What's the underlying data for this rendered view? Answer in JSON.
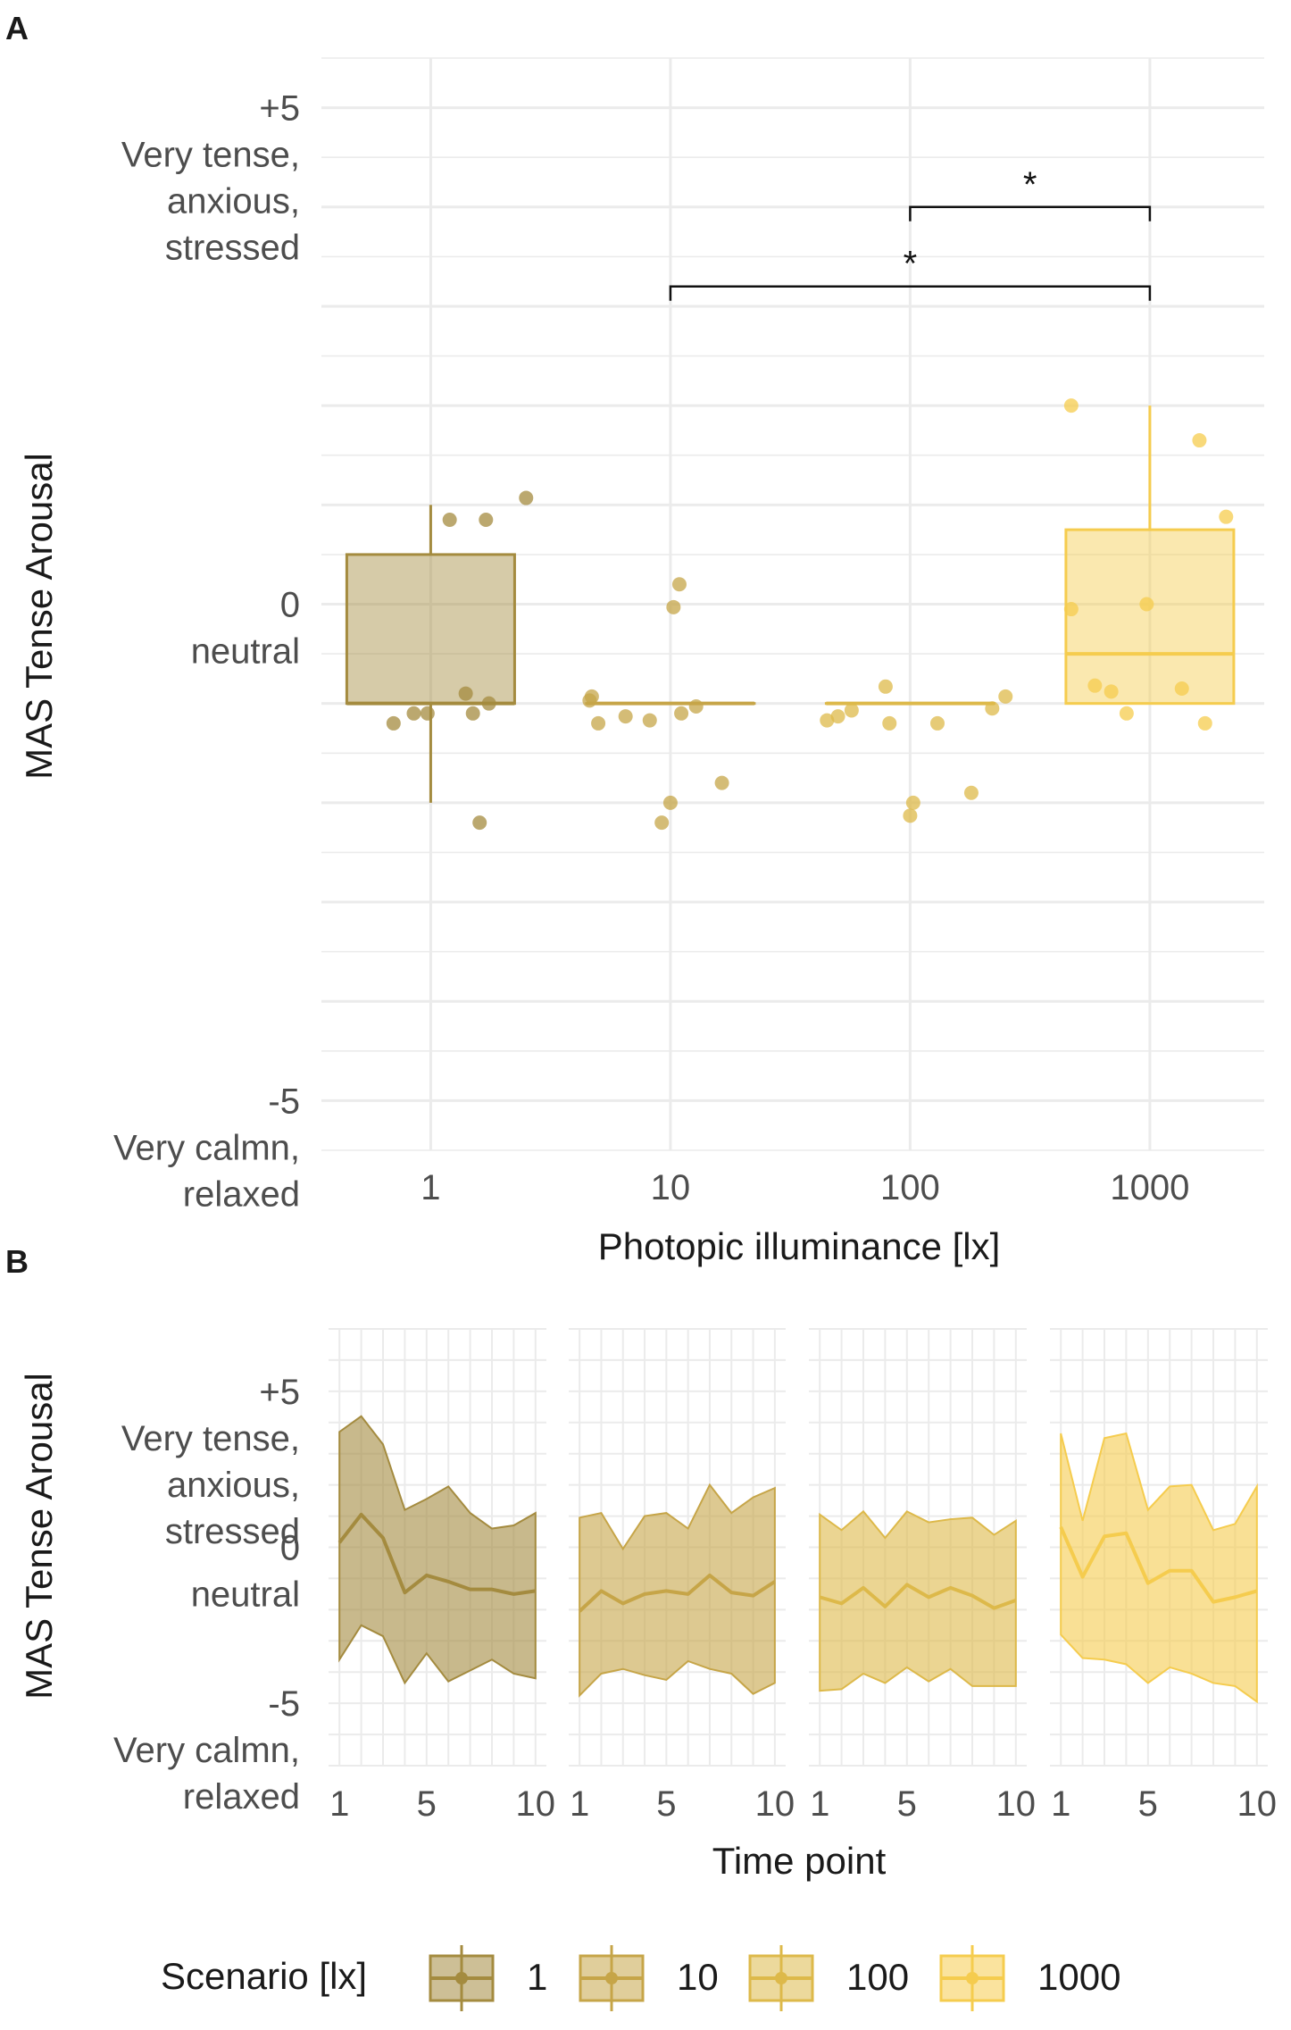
{
  "colors": {
    "1": "#A48B3F",
    "10": "#C6A548",
    "100": "#DDB94A",
    "1000": "#F5CC4E",
    "grid": "#EBEBEB",
    "axis_text": "#4D4D4D",
    "text": "#1A1A1A"
  },
  "chart_data": [
    {
      "panel_label": "A",
      "type": "box",
      "xlabel": "Photopic illuminance [lx]",
      "ylabel": "MAS Tense Arousal",
      "x_scale": "log10",
      "xlim": [
        0.35,
        3000
      ],
      "ylim": [
        -5.5,
        5.5
      ],
      "x_ticks": [
        1,
        10,
        100,
        1000
      ],
      "x_tick_labels": [
        "1",
        "10",
        "100",
        "1000"
      ],
      "y_tick_values": [
        5,
        0,
        -5
      ],
      "y_tick_labels": [
        [
          "+5",
          "Very tense,",
          "anxious,",
          "stressed"
        ],
        [
          "0",
          "neutral"
        ],
        [
          "-5",
          "Very calmn,",
          "relaxed"
        ]
      ],
      "groups": [
        {
          "name": "1",
          "x": 1,
          "min": -2,
          "q1": -1,
          "median": -1,
          "q3": 0.5,
          "max": 1,
          "points": [
            [
              0.7,
              -1.2
            ],
            [
              0.85,
              -1.1
            ],
            [
              0.97,
              -1.1
            ],
            [
              1.4,
              -0.9
            ],
            [
              1.5,
              -1.1
            ],
            [
              1.6,
              -2.2
            ],
            [
              1.75,
              -1
            ],
            [
              1.2,
              0.85
            ],
            [
              1.7,
              0.85
            ],
            [
              2.5,
              1.07
            ]
          ]
        },
        {
          "name": "10",
          "x": 10,
          "min": -1,
          "q1": -1,
          "median": -1,
          "q3": -1,
          "max": -1,
          "points": [
            [
              4.7,
              -0.93
            ],
            [
              4.6,
              -0.97
            ],
            [
              5,
              -1.2
            ],
            [
              6.5,
              -1.13
            ],
            [
              8.2,
              -1.17
            ],
            [
              10.3,
              -0.03
            ],
            [
              10.9,
              0.2
            ],
            [
              11.1,
              -1.1
            ],
            [
              12.8,
              -1.03
            ],
            [
              16.4,
              -1.8
            ],
            [
              9.2,
              -2.2
            ],
            [
              10,
              -2
            ]
          ]
        },
        {
          "name": "100",
          "x": 100,
          "min": -1,
          "q1": -1,
          "median": -1,
          "q3": -1,
          "max": -1,
          "points": [
            [
              45,
              -1.17
            ],
            [
              50,
              -1.13
            ],
            [
              57,
              -1.07
            ],
            [
              79,
              -0.83
            ],
            [
              82,
              -1.2
            ],
            [
              100,
              -2.13
            ],
            [
              103,
              -2
            ],
            [
              130,
              -1.2
            ],
            [
              180,
              -1.9
            ],
            [
              220,
              -1.05
            ],
            [
              250,
              -0.93
            ]
          ]
        },
        {
          "name": "1000",
          "x": 1000,
          "min": -1,
          "q1": -1,
          "median": -0.5,
          "q3": 0.75,
          "max": 2,
          "points": [
            [
              470,
              2
            ],
            [
              470,
              -0.05
            ],
            [
              590,
              -0.82
            ],
            [
              690,
              -0.88
            ],
            [
              970,
              0
            ],
            [
              1360,
              -0.85
            ],
            [
              1610,
              1.65
            ],
            [
              2080,
              0.88
            ],
            [
              800,
              -1.1
            ],
            [
              1700,
              -1.2
            ]
          ]
        }
      ],
      "annotations": [
        {
          "text": "*",
          "x_from": 100,
          "x_to": 1000,
          "y": 4
        },
        {
          "text": "*",
          "x_from": 10,
          "x_to": 1000,
          "y": 3.2
        }
      ]
    },
    {
      "panel_label": "B",
      "type": "area",
      "xlabel": "Time point",
      "ylabel": "MAS Tense Arousal",
      "x": [
        1,
        2,
        3,
        4,
        5,
        6,
        7,
        8,
        9,
        10
      ],
      "xlim": [
        0.5,
        10.5
      ],
      "ylim": [
        -7,
        7
      ],
      "x_ticks": [
        1,
        5,
        10
      ],
      "x_tick_labels": [
        "1",
        "5",
        "10"
      ],
      "y_tick_values": [
        5,
        0,
        -5
      ],
      "y_tick_labels": [
        [
          "+5",
          "Very tense,",
          "anxious,",
          "stressed"
        ],
        [
          "0",
          "neutral"
        ],
        [
          "-5",
          "Very calmn,",
          "relaxed"
        ]
      ],
      "series": [
        {
          "name": "1",
          "mean": [
            0.15,
            1.05,
            0.3,
            -1.45,
            -0.9,
            -1.1,
            -1.35,
            -1.35,
            -1.5,
            -1.4
          ],
          "lower": [
            -3.6,
            -2.5,
            -2.85,
            -4.35,
            -3.4,
            -4.3,
            -3.95,
            -3.6,
            -4.05,
            -4.2
          ],
          "upper": [
            3.7,
            4.2,
            3.3,
            1.2,
            1.55,
            1.95,
            1.1,
            0.6,
            0.7,
            1.1
          ]
        },
        {
          "name": "10",
          "mean": [
            -2.05,
            -1.4,
            -1.8,
            -1.5,
            -1.4,
            -1.5,
            -0.9,
            -1.45,
            -1.55,
            -1.1
          ],
          "lower": [
            -4.75,
            -4.05,
            -3.9,
            -4.1,
            -4.25,
            -3.65,
            -3.9,
            -4.05,
            -4.7,
            -4.35
          ],
          "upper": [
            0.95,
            1.1,
            -0.05,
            1.0,
            1.1,
            0.6,
            2.0,
            1.1,
            1.6,
            1.9
          ]
        },
        {
          "name": "100",
          "mean": [
            -1.6,
            -1.8,
            -1.3,
            -1.9,
            -1.2,
            -1.6,
            -1.3,
            -1.55,
            -1.95,
            -1.7
          ],
          "lower": [
            -4.6,
            -4.55,
            -4.05,
            -4.35,
            -3.85,
            -4.3,
            -3.9,
            -4.45,
            -4.45,
            -4.45
          ],
          "upper": [
            1.05,
            0.55,
            1.15,
            0.3,
            1.15,
            0.8,
            0.9,
            0.95,
            0.4,
            0.85
          ]
        },
        {
          "name": "1000",
          "mean": [
            0.65,
            -0.95,
            0.35,
            0.45,
            -1.15,
            -0.75,
            -0.75,
            -1.75,
            -1.6,
            -1.4
          ],
          "lower": [
            -2.8,
            -3.55,
            -3.6,
            -3.75,
            -4.35,
            -3.85,
            -4.05,
            -4.35,
            -4.45,
            -4.95
          ],
          "upper": [
            3.65,
            0.85,
            3.5,
            3.65,
            1.2,
            1.95,
            2.0,
            0.55,
            0.75,
            1.95
          ]
        }
      ]
    }
  ],
  "legend": {
    "title": "Scenario [lx]",
    "items": [
      "1",
      "10",
      "100",
      "1000"
    ]
  }
}
